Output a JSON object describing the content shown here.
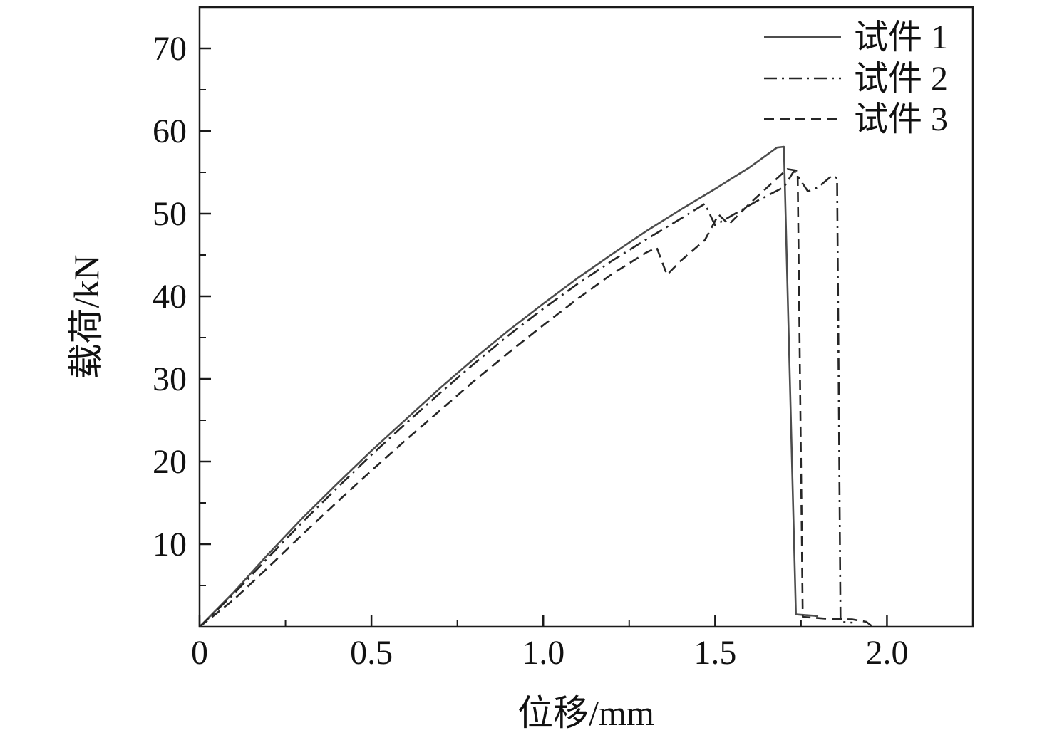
{
  "chart_data": {
    "type": "line",
    "title": "",
    "xlabel": "位移/mm",
    "ylabel": "载荷/kN",
    "xlim": [
      0,
      2.25
    ],
    "ylim": [
      0,
      75
    ],
    "grid": false,
    "legend_position": "top-right",
    "axis_color": "#1a1a1a",
    "x_ticks": [
      {
        "v": 0.0,
        "label": "0"
      },
      {
        "v": 0.5,
        "label": "0.5"
      },
      {
        "v": 1.0,
        "label": "1.0"
      },
      {
        "v": 1.5,
        "label": "1.5"
      },
      {
        "v": 2.0,
        "label": "2.0"
      }
    ],
    "x_minor_ticks": [
      0.25,
      0.75,
      1.25,
      1.75
    ],
    "y_ticks": [
      {
        "v": 10,
        "label": "10"
      },
      {
        "v": 20,
        "label": "20"
      },
      {
        "v": 30,
        "label": "30"
      },
      {
        "v": 40,
        "label": "40"
      },
      {
        "v": 50,
        "label": "50"
      },
      {
        "v": 60,
        "label": "60"
      },
      {
        "v": 70,
        "label": "70"
      }
    ],
    "y_minor_ticks": [
      5,
      15,
      25,
      35,
      45,
      55,
      65
    ],
    "series": [
      {
        "name": "试件 1",
        "style": "solid",
        "color": "#4d4d4d",
        "points": [
          [
            0,
            0
          ],
          [
            0.1,
            4.2
          ],
          [
            0.2,
            8.8
          ],
          [
            0.3,
            13.2
          ],
          [
            0.4,
            17.3
          ],
          [
            0.5,
            21.3
          ],
          [
            0.6,
            25.1
          ],
          [
            0.7,
            28.9
          ],
          [
            0.8,
            32.5
          ],
          [
            0.9,
            35.9
          ],
          [
            1.0,
            39.1
          ],
          [
            1.1,
            42.2
          ],
          [
            1.2,
            45.1
          ],
          [
            1.3,
            47.9
          ],
          [
            1.4,
            50.5
          ],
          [
            1.5,
            53.0
          ],
          [
            1.6,
            55.6
          ],
          [
            1.68,
            58.0
          ],
          [
            1.7,
            58.1
          ],
          [
            1.735,
            1.5
          ],
          [
            1.8,
            1.3
          ]
        ]
      },
      {
        "name": "试件 2",
        "style": "dashdot",
        "color": "#262626",
        "points": [
          [
            0,
            0
          ],
          [
            0.1,
            4.0
          ],
          [
            0.2,
            8.4
          ],
          [
            0.3,
            12.7
          ],
          [
            0.4,
            16.8
          ],
          [
            0.5,
            20.8
          ],
          [
            0.6,
            24.6
          ],
          [
            0.7,
            28.3
          ],
          [
            0.8,
            31.9
          ],
          [
            0.9,
            35.3
          ],
          [
            1.0,
            38.5
          ],
          [
            1.1,
            41.5
          ],
          [
            1.2,
            44.3
          ],
          [
            1.3,
            46.9
          ],
          [
            1.4,
            49.4
          ],
          [
            1.47,
            51.2
          ],
          [
            1.5,
            48.6
          ],
          [
            1.55,
            49.8
          ],
          [
            1.62,
            51.5
          ],
          [
            1.7,
            53.2
          ],
          [
            1.73,
            55.2
          ],
          [
            1.77,
            52.7
          ],
          [
            1.8,
            53.2
          ],
          [
            1.84,
            54.6
          ],
          [
            1.855,
            54.3
          ],
          [
            1.865,
            0.6
          ],
          [
            1.9,
            0.5
          ]
        ]
      },
      {
        "name": "试件 3",
        "style": "dashed",
        "color": "#262626",
        "points": [
          [
            0,
            0
          ],
          [
            0.1,
            3.3
          ],
          [
            0.2,
            7.2
          ],
          [
            0.3,
            11.2
          ],
          [
            0.4,
            15.1
          ],
          [
            0.5,
            18.9
          ],
          [
            0.6,
            22.6
          ],
          [
            0.7,
            26.2
          ],
          [
            0.8,
            29.8
          ],
          [
            0.9,
            33.2
          ],
          [
            1.0,
            36.5
          ],
          [
            1.1,
            39.7
          ],
          [
            1.2,
            42.7
          ],
          [
            1.3,
            45.3
          ],
          [
            1.33,
            45.9
          ],
          [
            1.36,
            42.6
          ],
          [
            1.4,
            44.3
          ],
          [
            1.47,
            46.8
          ],
          [
            1.51,
            49.9
          ],
          [
            1.54,
            48.7
          ],
          [
            1.6,
            51.2
          ],
          [
            1.66,
            53.5
          ],
          [
            1.71,
            55.4
          ],
          [
            1.74,
            55.2
          ],
          [
            1.755,
            1.2
          ],
          [
            1.82,
            1.0
          ],
          [
            1.9,
            0.9
          ],
          [
            1.94,
            0.6
          ],
          [
            1.99,
            -1.0
          ]
        ]
      }
    ]
  }
}
